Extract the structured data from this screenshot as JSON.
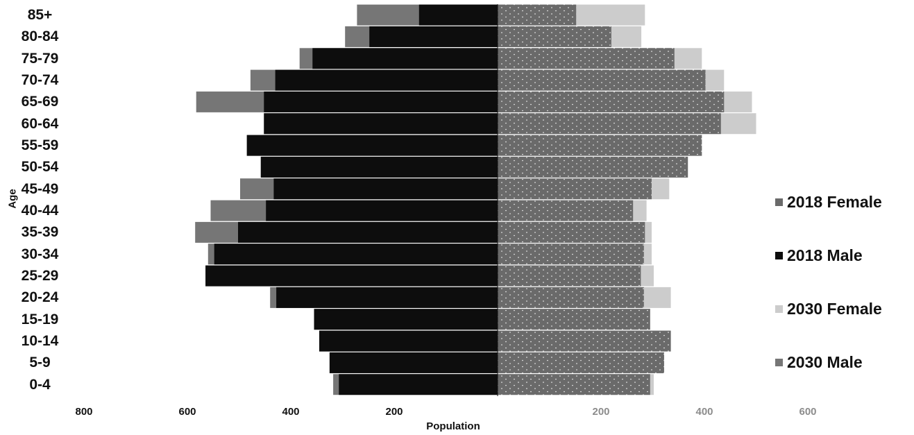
{
  "chart_data": {
    "type": "bar",
    "orientation": "horizontal",
    "categories": [
      "85+",
      "80-84",
      "75-79",
      "70-74",
      "65-69",
      "60-64",
      "55-59",
      "50-54",
      "45-49",
      "40-44",
      "35-39",
      "30-34",
      "25-29",
      "20-24",
      "15-19",
      "10-14",
      "5-9",
      "0-4"
    ],
    "series": [
      {
        "name": "2030 Male",
        "side": "left",
        "color": "#767676",
        "values": [
          272,
          295,
          383,
          478,
          583,
          452,
          485,
          458,
          498,
          555,
          585,
          560,
          565,
          440,
          355,
          345,
          325,
          318
        ]
      },
      {
        "name": "2018 Male",
        "side": "left",
        "color": "#0d0d0d",
        "values": [
          152,
          248,
          358,
          430,
          452,
          452,
          485,
          458,
          433,
          448,
          502,
          548,
          565,
          428,
          355,
          345,
          325,
          307
        ]
      },
      {
        "name": "2030 Female",
        "side": "right",
        "color": "#cccccc",
        "values": [
          285,
          278,
          395,
          438,
          492,
          500,
          395,
          368,
          332,
          288,
          298,
          298,
          302,
          335,
          295,
          335,
          322,
          302
        ]
      },
      {
        "name": "2018 Female",
        "side": "right",
        "color": "#6a6a6a",
        "pattern": "dots",
        "values": [
          152,
          220,
          342,
          402,
          438,
          432,
          395,
          368,
          298,
          262,
          285,
          283,
          277,
          283,
          295,
          335,
          322,
          295
        ]
      }
    ],
    "xlabel": "Population",
    "ylabel": "Age",
    "xlim": [
      -800,
      800
    ],
    "ticks_left": [
      "800",
      "600",
      "400",
      "200"
    ],
    "ticks_right": [
      "200",
      "400",
      "600"
    ],
    "legend_position": "right",
    "legend_order": [
      "2018 Female",
      "2018 Male",
      "2030 Female",
      "2030 Male"
    ],
    "grid": false
  }
}
